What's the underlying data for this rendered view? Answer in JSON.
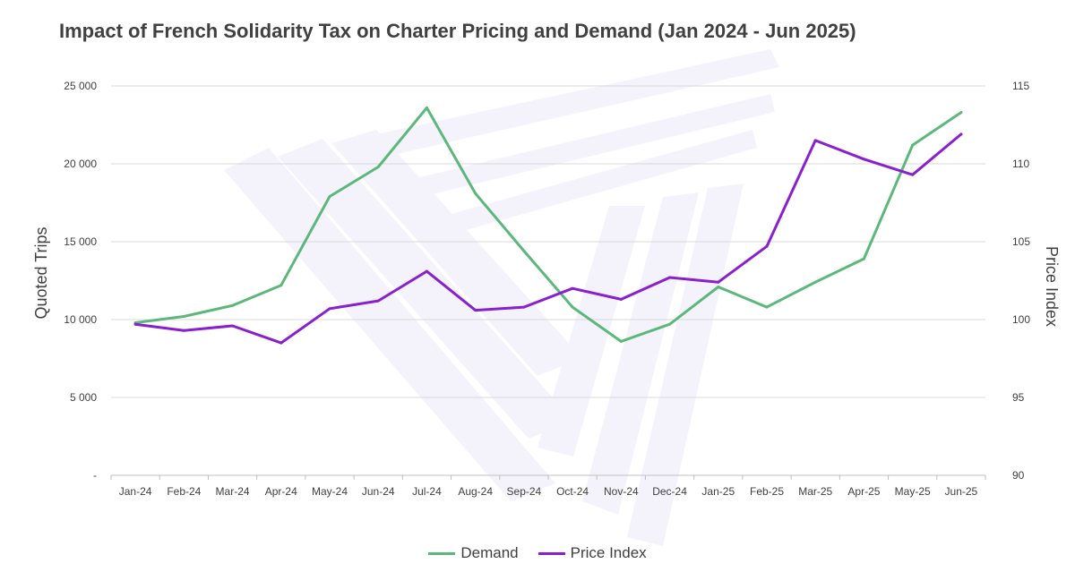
{
  "chart_data": {
    "type": "line",
    "title": "Impact of French Solidarity Tax on Charter Pricing and Demand (Jan 2024 - Jun 2025)",
    "categories": [
      "Jan-24",
      "Feb-24",
      "Mar-24",
      "Apr-24",
      "May-24",
      "Jun-24",
      "Jul-24",
      "Aug-24",
      "Sep-24",
      "Oct-24",
      "Nov-24",
      "Dec-24",
      "Jan-25",
      "Feb-25",
      "Mar-25",
      "Apr-25",
      "May-25",
      "Jun-25"
    ],
    "ylabel": "Quoted Trips",
    "y2label": "Price Index",
    "ylim": [
      0,
      25000
    ],
    "y2lim": [
      90,
      115
    ],
    "yticks": [
      {
        "value": 0,
        "label": "-"
      },
      {
        "value": 5000,
        "label": "5 000"
      },
      {
        "value": 10000,
        "label": "10 000"
      },
      {
        "value": 15000,
        "label": "15 000"
      },
      {
        "value": 20000,
        "label": "20 000"
      },
      {
        "value": 25000,
        "label": "25 000"
      }
    ],
    "y2ticks": [
      {
        "value": 90,
        "label": "90"
      },
      {
        "value": 95,
        "label": "95"
      },
      {
        "value": 100,
        "label": "100"
      },
      {
        "value": 105,
        "label": "105"
      },
      {
        "value": 110,
        "label": "110"
      },
      {
        "value": 115,
        "label": "115"
      }
    ],
    "grid": true,
    "legend_position": "bottom",
    "series": [
      {
        "name": "Demand",
        "axis": "left",
        "color": "#5cb87a",
        "values": [
          9800,
          10200,
          10900,
          12200,
          17900,
          19800,
          23600,
          18100,
          14400,
          10800,
          8600,
          9700,
          12100,
          10800,
          12400,
          13900,
          21200,
          23300
        ]
      },
      {
        "name": "Price Index",
        "axis": "right",
        "color": "#8a1fcf",
        "values": [
          99.7,
          99.3,
          99.6,
          98.5,
          100.7,
          101.2,
          103.1,
          100.6,
          100.8,
          102.0,
          101.3,
          102.7,
          102.4,
          104.7,
          111.5,
          110.3,
          109.3,
          111.9
        ]
      }
    ]
  }
}
